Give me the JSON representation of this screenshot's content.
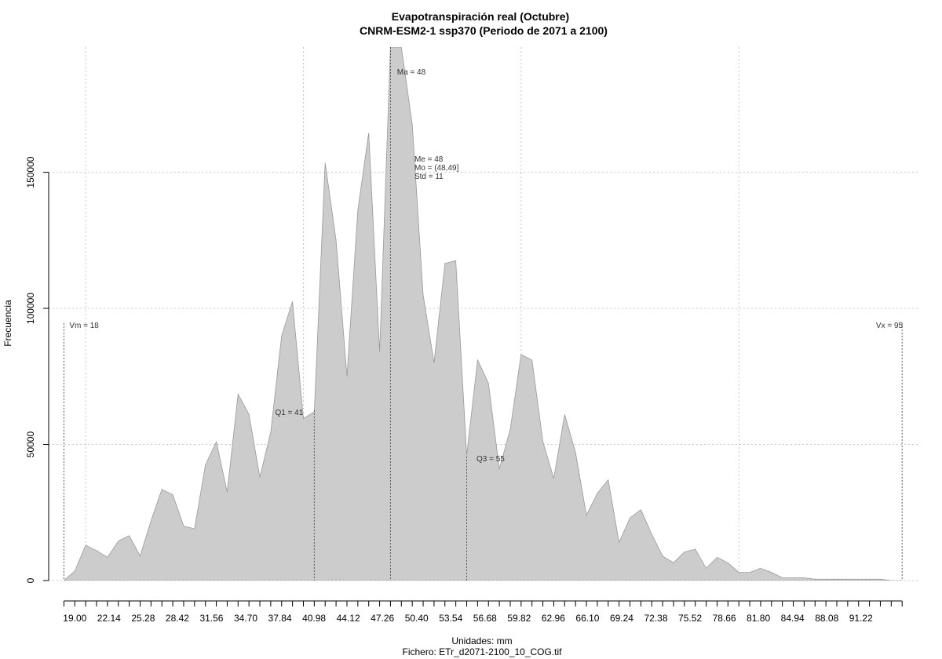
{
  "chart_data": {
    "type": "area",
    "title": "Evapotranspiración real (Octubre)",
    "subtitle": "CNRM-ESM2-1 ssp370 (Periodo de 2071 a 2100)",
    "xlabel": "Unidades: mm",
    "file_label": "Fichero: ETr_d2071-2100_10_COG.tif",
    "ylabel": "Frecuencia",
    "xlim": [
      16.6,
      96.5
    ],
    "ylim": [
      0,
      196000
    ],
    "grid": true,
    "fill_color": "#cccccc",
    "line_color": "#999999",
    "x_tick_labels": [
      "19.00",
      "22.14",
      "25.28",
      "28.42",
      "31.56",
      "34.70",
      "37.84",
      "40.98",
      "44.12",
      "47.26",
      "50.40",
      "53.54",
      "56.68",
      "59.82",
      "62.96",
      "66.10",
      "69.24",
      "72.38",
      "75.52",
      "78.66",
      "81.80",
      "84.94",
      "88.08",
      "91.22"
    ],
    "y_ticks": [
      0,
      50000,
      100000,
      150000
    ],
    "y_tick_labels": [
      "0",
      "50000",
      "100000",
      "150000"
    ],
    "x": [
      18,
      19,
      20,
      21,
      22,
      23,
      24,
      25,
      26,
      27,
      28,
      29,
      30,
      31,
      32,
      33,
      34,
      35,
      36,
      37,
      38,
      39,
      40,
      41,
      42,
      43,
      44,
      45,
      46,
      47,
      48,
      49,
      50,
      51,
      52,
      53,
      54,
      55,
      56,
      57,
      58,
      59,
      60,
      61,
      62,
      63,
      64,
      65,
      66,
      67,
      68,
      69,
      70,
      71,
      72,
      73,
      74,
      75,
      76,
      77,
      78,
      79,
      80,
      81,
      82,
      83,
      84,
      85,
      86,
      87,
      88,
      89,
      90,
      91,
      92,
      93,
      94,
      95
    ],
    "y": [
      0,
      3500,
      13000,
      11000,
      8500,
      14500,
      16500,
      9000,
      22000,
      33500,
      31500,
      20000,
      19000,
      42500,
      51000,
      32500,
      68500,
      61000,
      38000,
      54500,
      90000,
      102500,
      59500,
      62000,
      153500,
      125000,
      75000,
      136000,
      164500,
      84000,
      196000,
      196000,
      167500,
      105000,
      80000,
      116500,
      117500,
      46000,
      81000,
      72500,
      41000,
      55500,
      83000,
      81000,
      51000,
      37500,
      61000,
      47000,
      24000,
      32000,
      37000,
      14000,
      23000,
      26000,
      17000,
      9000,
      6500,
      10500,
      11500,
      4500,
      8500,
      6500,
      3000,
      3000,
      4500,
      3000,
      1000,
      1000,
      1000,
      500,
      500,
      500,
      500,
      500,
      500,
      500,
      0,
      0
    ],
    "vlines": [
      {
        "x": 18,
        "label": "Vm = 18",
        "text_x": 18.5,
        "text_y": 94000
      },
      {
        "x": 41,
        "label": "Q1 = 41",
        "text_x": 37.4,
        "text_y": 62000
      },
      {
        "x": 48,
        "label": "Ma = 48",
        "text_x": 48.6,
        "text_y": 187000
      },
      {
        "x": 55,
        "label": "Q3 = 55",
        "text_x": 55.9,
        "text_y": 45000
      },
      {
        "x": 95,
        "label": "Vx = 95",
        "text_x": 92.6,
        "text_y": 94000
      }
    ],
    "stats_labels": [
      {
        "label": "Me = 48",
        "text_x": 50.2,
        "text_y": 152000
      },
      {
        "label": "Mo = (48,49]",
        "text_x": 50.2,
        "text_y": 149000
      },
      {
        "label": "Std = 11",
        "text_x": 50.2,
        "text_y": 146000
      }
    ]
  }
}
